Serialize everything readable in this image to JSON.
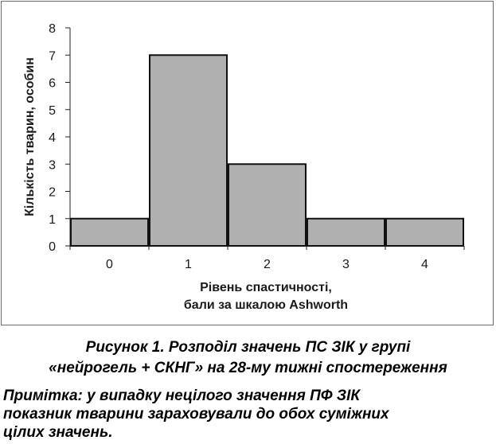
{
  "chart_data": {
    "type": "bar",
    "categories": [
      "0",
      "1",
      "2",
      "3",
      "4"
    ],
    "values": [
      1,
      7,
      3,
      1,
      1
    ],
    "ylim": [
      0,
      8
    ],
    "yticks": [
      "0",
      "1",
      "2",
      "3",
      "4",
      "5",
      "6",
      "7",
      "8"
    ],
    "ylabel": "Кількість тварин, особин",
    "xlabel_lines": [
      "Рівень спастичності,",
      "бали за шкалою Ashworth"
    ],
    "grid": false,
    "bar_color": "#b0b0b0",
    "bar_edge_color": "#111111"
  },
  "caption": {
    "line1": "Рисунок 1. Розподіл значень ПС ЗІК у групі",
    "line2": "«нейрогель + СКНГ» на 28-му тижні спостереження"
  },
  "note": {
    "line1": "Примітка: у випадку нецілого значення ПФ ЗІК",
    "line2": "показник тварини зараховували до обох суміжних",
    "line3": "цілих значень."
  }
}
